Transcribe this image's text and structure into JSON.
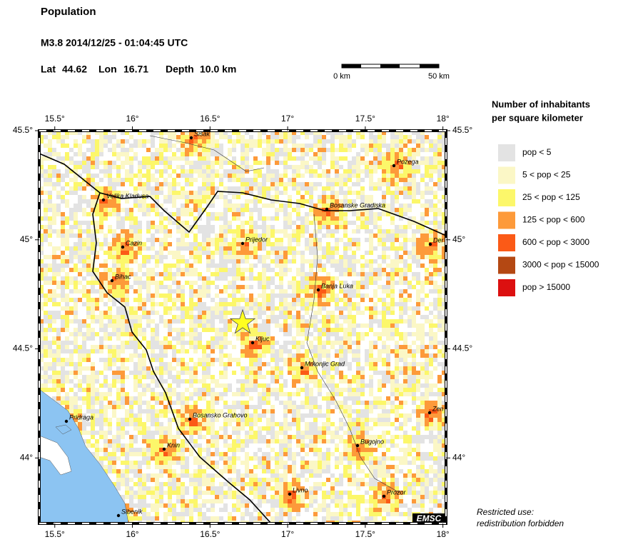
{
  "header": {
    "title": "Population",
    "event": "M3.8  2014/12/25 - 01:04:45 UTC",
    "lat": {
      "label": "Lat",
      "value": 44.62
    },
    "lon": {
      "label": "Lon",
      "value": 16.71
    },
    "depth": {
      "label": "Depth",
      "value": "10.0 km"
    }
  },
  "scale": {
    "start": "0 km",
    "end": "50 km"
  },
  "map": {
    "xlim": [
      15.4,
      18.02
    ],
    "ylim": [
      43.7,
      45.5
    ],
    "xticks": [
      {
        "value": 15.5,
        "label": "15.5°"
      },
      {
        "value": 16,
        "label": "16°"
      },
      {
        "value": 16.5,
        "label": "16.5°"
      },
      {
        "value": 17,
        "label": "17°"
      },
      {
        "value": 17.5,
        "label": "17.5°"
      },
      {
        "value": 18,
        "label": "18°"
      }
    ],
    "yticks": [
      {
        "value": 44,
        "label": "44°"
      },
      {
        "value": 44.5,
        "label": "44.5°"
      },
      {
        "value": 45,
        "label": "45°"
      },
      {
        "value": 45.5,
        "label": "45.5°"
      }
    ],
    "cities": [
      "Sisak",
      "Pozega",
      "Velika Kladusa",
      "Bosanske Gradiska",
      "Cazin",
      "Prijedor",
      "Der",
      "Bihac",
      "Banja Luka",
      "Kljuc",
      "Mrkonjic Grad",
      "Zen",
      "Pridraga",
      "Bosansko Grahovo",
      "Knin",
      "Bugojno",
      "Livno",
      "Prozor",
      "Sibenik"
    ],
    "badge": "EMSC"
  },
  "legend": {
    "title": [
      "Number of inhabitants",
      "per square kilometer"
    ],
    "items": [
      {
        "label": "pop < 5",
        "color": "#e3e3e3"
      },
      {
        "label": "5 < pop < 25",
        "color": "#fbf7c6"
      },
      {
        "label": "25 < pop < 125",
        "color": "#fcf76a"
      },
      {
        "label": "125 < pop < 600",
        "color": "#fd9a3a"
      },
      {
        "label": "600 < pop < 3000",
        "color": "#fb5a17"
      },
      {
        "label": "3000 < pop < 15000",
        "color": "#b44813"
      },
      {
        "label": "pop > 15000",
        "color": "#dc1010"
      }
    ]
  },
  "note": [
    "Restricted use:",
    "redistribution forbidden"
  ]
}
